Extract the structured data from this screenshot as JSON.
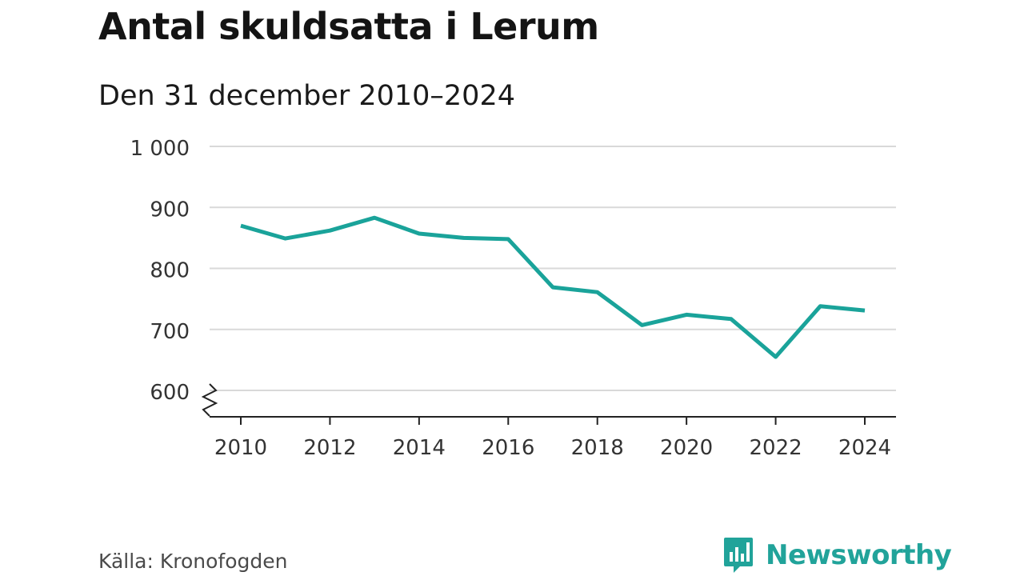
{
  "title": "Antal skuldsatta i Lerum",
  "subtitle": "Den 31 december 2010–2024",
  "source": "Källa: Kronofogden",
  "brand": {
    "name": "Newsworthy",
    "icon": "newsworthy-logo-icon",
    "color": "#21a39a"
  },
  "colors": {
    "line": "#1aa39a",
    "grid": "#d9d9d9",
    "axis": "#222222"
  },
  "chart_data": {
    "type": "line",
    "title": "Antal skuldsatta i Lerum",
    "subtitle": "Den 31 december 2010–2024",
    "xlabel": "",
    "ylabel": "",
    "x": [
      2010,
      2011,
      2012,
      2013,
      2014,
      2015,
      2016,
      2017,
      2018,
      2019,
      2020,
      2021,
      2022,
      2023,
      2024
    ],
    "series": [
      {
        "name": "Antal skuldsatta",
        "values": [
          870,
          849,
          862,
          883,
          857,
          850,
          848,
          769,
          761,
          707,
          724,
          717,
          655,
          738,
          731
        ]
      }
    ],
    "ylim": [
      600,
      1000
    ],
    "yticks": [
      600,
      700,
      800,
      900,
      1000
    ],
    "ytick_labels": [
      "600",
      "700",
      "800",
      "900",
      "1 000"
    ],
    "xticks": [
      2010,
      2012,
      2014,
      2016,
      2018,
      2020,
      2022,
      2024
    ],
    "xtick_labels": [
      "2010",
      "2012",
      "2014",
      "2016",
      "2018",
      "2020",
      "2022",
      "2024"
    ],
    "grid": true,
    "y_axis_break": true,
    "legend": "none"
  }
}
